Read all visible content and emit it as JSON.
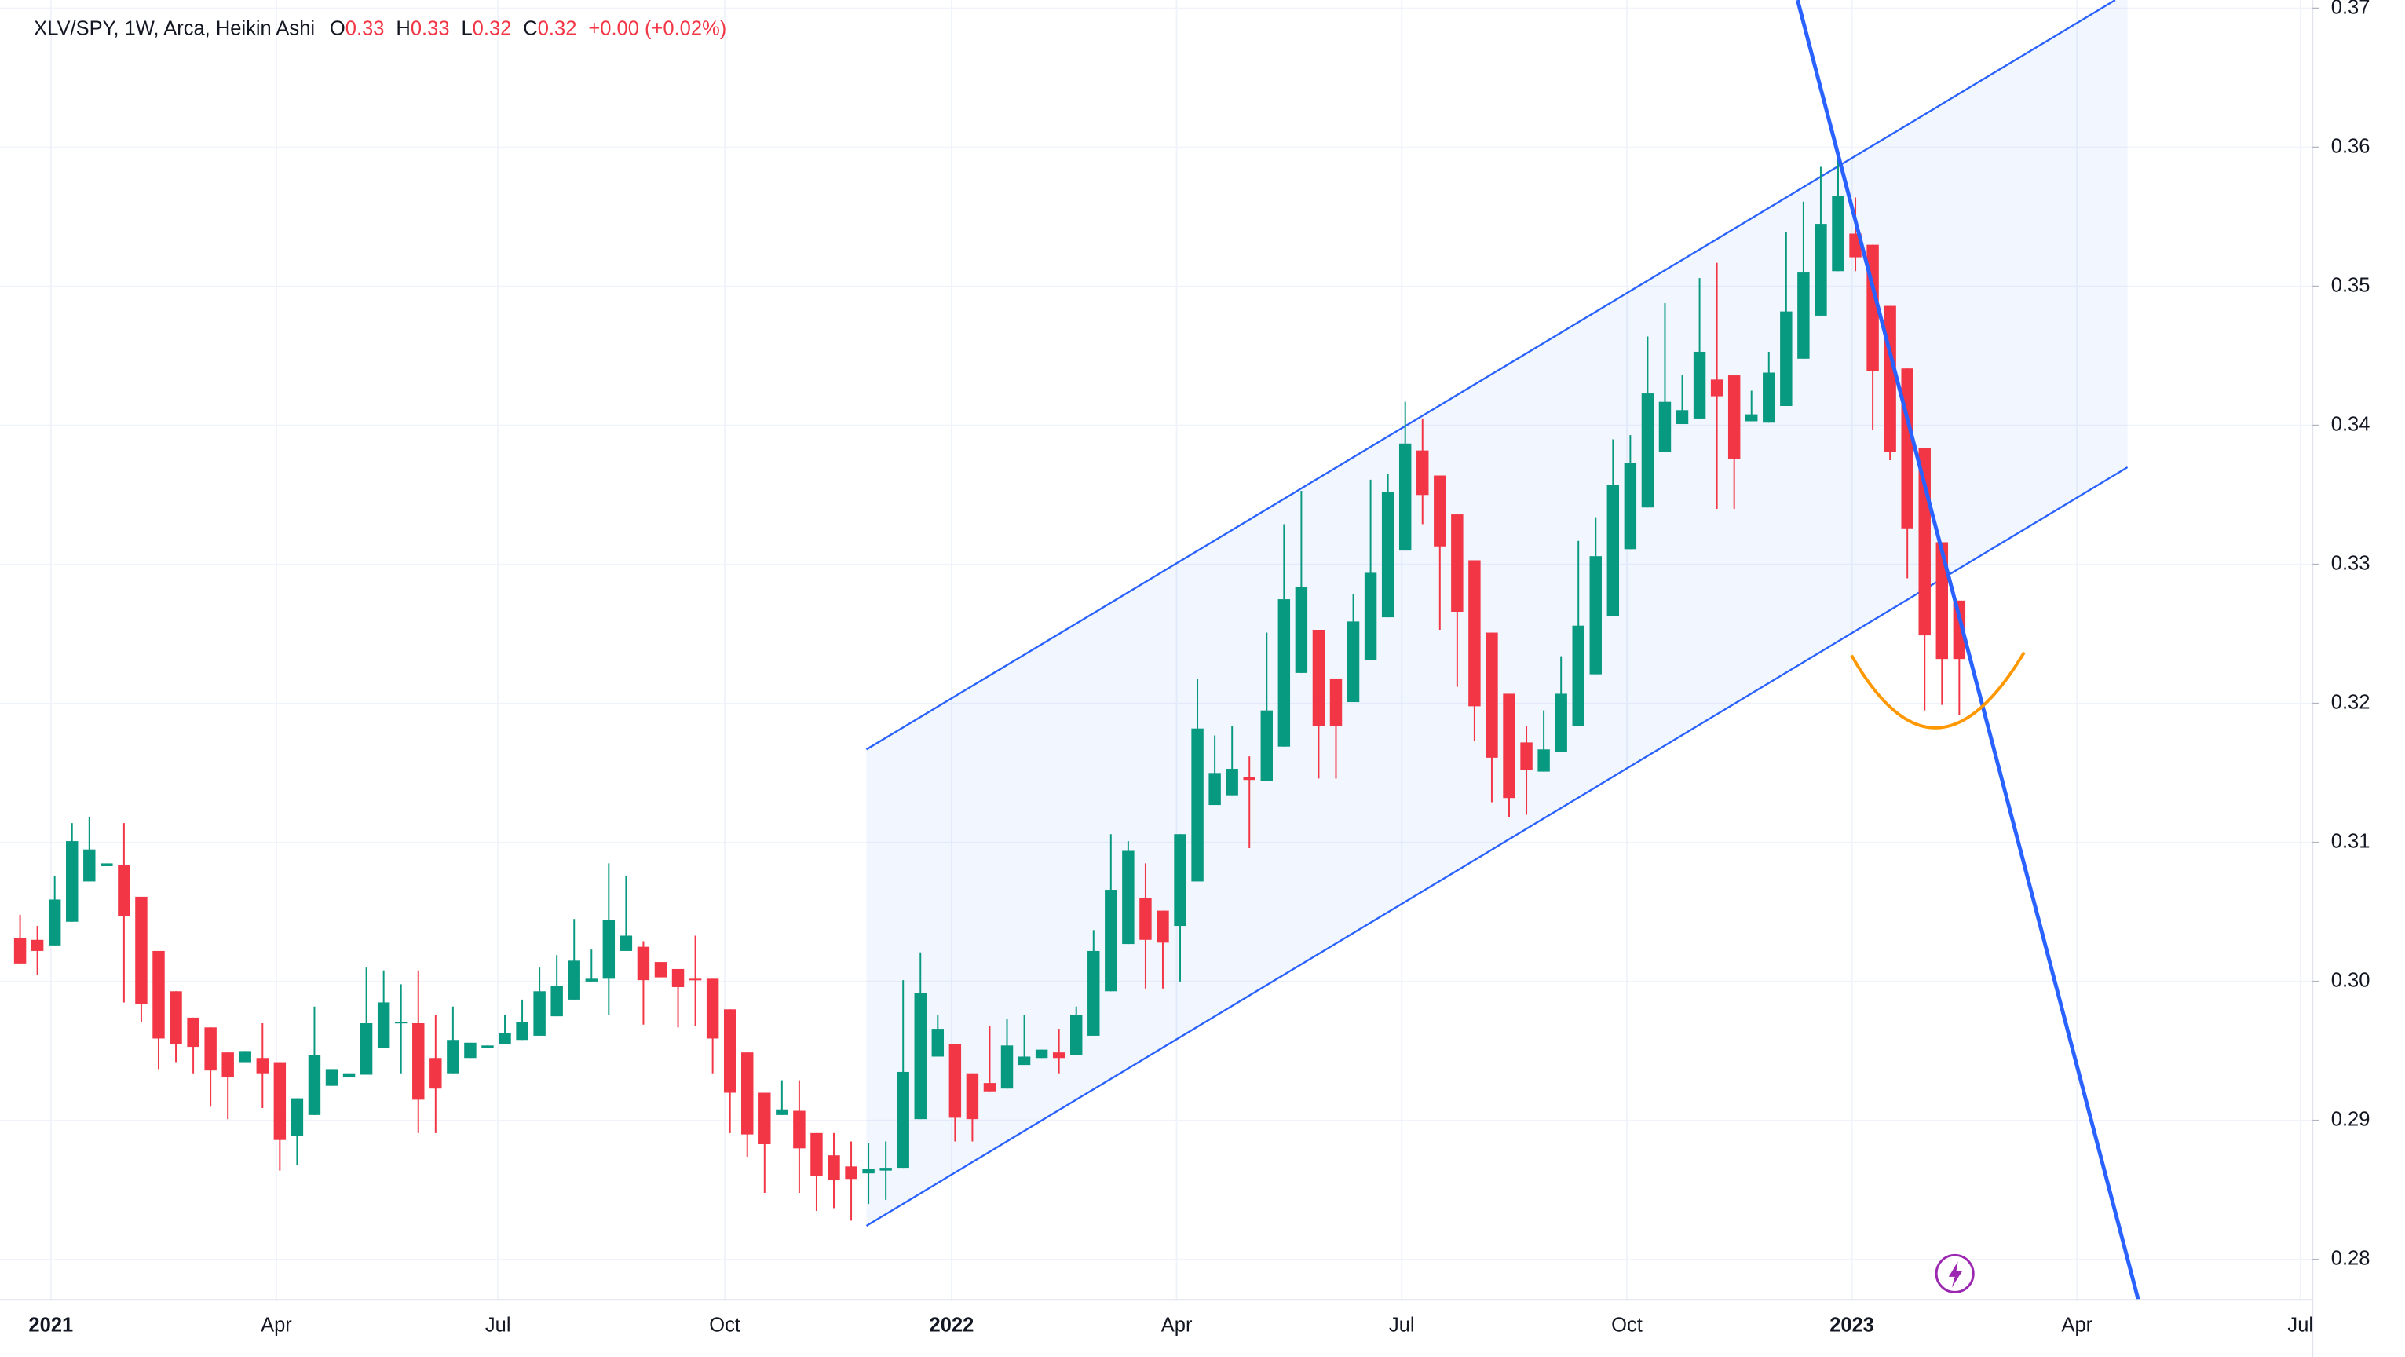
{
  "legend": {
    "symbol": "XLV/SPY, 1W, Arca, Heikin Ashi",
    "ohlc": [
      {
        "key": "O",
        "value": 0.33
      },
      {
        "key": "H",
        "value": 0.33
      },
      {
        "key": "L",
        "value": 0.32
      },
      {
        "key": "C",
        "value": 0.32
      }
    ],
    "change": "+0.00 (+0.02%)"
  },
  "chart_data": {
    "type": "candlestick",
    "up_color": "#089981",
    "down_color": "#f23645",
    "grid": true,
    "xlim": [
      -1.16,
      132.4
    ],
    "ylim": [
      0.2771,
      0.3706
    ],
    "xticks": [
      {
        "value": 1.78,
        "label": "2021"
      },
      {
        "value": 14.8,
        "label": "Apr"
      },
      {
        "value": 27.6,
        "label": "Jul"
      },
      {
        "value": 40.7,
        "label": "Oct"
      },
      {
        "value": 53.8,
        "label": "2022"
      },
      {
        "value": 66.8,
        "label": "Apr"
      },
      {
        "value": 79.8,
        "label": "Jul"
      },
      {
        "value": 92.8,
        "label": "Oct"
      },
      {
        "value": 105.8,
        "label": "2023"
      },
      {
        "value": 118.8,
        "label": "Apr"
      },
      {
        "value": 131.7,
        "label": "Jul"
      }
    ],
    "yticks": [
      0.28,
      0.29,
      {
        "value": 0.3,
        "label": "0.30"
      },
      0.31,
      0.32,
      0.33,
      0.34,
      0.35,
      0.36,
      0.37
    ],
    "open": [
      0.3031,
      0.303,
      0.3026,
      0.3043,
      0.3072,
      0.3083,
      0.3084,
      0.3061,
      0.3022,
      0.2993,
      0.2974,
      0.2967,
      0.2949,
      0.2942,
      0.2945,
      0.2942,
      0.2889,
      0.2904,
      0.2925,
      0.2931,
      0.2933,
      0.2952,
      0.297,
      0.297,
      0.2945,
      0.2934,
      0.2945,
      0.2952,
      0.2955,
      0.2958,
      0.2961,
      0.2975,
      0.2987,
      0.3,
      0.3002,
      0.3022,
      0.3025,
      0.3014,
      0.3009,
      0.3002,
      0.3002,
      0.298,
      0.2949,
      0.292,
      0.2904,
      0.2907,
      0.2891,
      0.2875,
      0.2867,
      0.2862,
      0.2864,
      0.2866,
      0.2901,
      0.2946,
      0.2955,
      0.2934,
      0.2927,
      0.2923,
      0.294,
      0.2945,
      0.2949,
      0.2947,
      0.2961,
      0.2993,
      0.3027,
      0.306,
      0.3051,
      0.304,
      0.3072,
      0.3127,
      0.3134,
      0.3147,
      0.3144,
      0.3169,
      0.3222,
      0.3253,
      0.3218,
      0.3201,
      0.3231,
      0.3262,
      0.331,
      0.3382,
      0.3364,
      0.3336,
      0.3303,
      0.3251,
      0.3207,
      0.3172,
      0.3151,
      0.3165,
      0.3184,
      0.3221,
      0.3263,
      0.3311,
      0.3341,
      0.3381,
      0.3401,
      0.3405,
      0.3433,
      0.3436,
      0.3403,
      0.3402,
      0.3414,
      0.3448,
      0.3479,
      0.3511,
      0.3538,
      0.353,
      0.3486,
      0.3441,
      0.3384,
      0.3316,
      0.3274
    ],
    "high": [
      0.3048,
      0.304,
      0.3076,
      0.3114,
      0.3118,
      0.3085,
      0.3114,
      0.3061,
      0.3022,
      0.2993,
      0.2974,
      0.2967,
      0.2949,
      0.295,
      0.297,
      0.2942,
      0.2916,
      0.2982,
      0.2937,
      0.2934,
      0.301,
      0.3008,
      0.2998,
      0.3008,
      0.2976,
      0.2982,
      0.2956,
      0.2954,
      0.2976,
      0.2987,
      0.301,
      0.3019,
      0.3045,
      0.3023,
      0.3085,
      0.3076,
      0.3029,
      0.3014,
      0.3009,
      0.3033,
      0.3002,
      0.298,
      0.2949,
      0.292,
      0.2929,
      0.2929,
      0.2891,
      0.2891,
      0.2885,
      0.2884,
      0.2885,
      0.3001,
      0.3021,
      0.2976,
      0.2955,
      0.2934,
      0.2968,
      0.2973,
      0.2976,
      0.2951,
      0.2966,
      0.2982,
      0.3037,
      0.3106,
      0.3101,
      0.3085,
      0.3051,
      0.3106,
      0.3218,
      0.3177,
      0.3184,
      0.3162,
      0.3251,
      0.3329,
      0.3353,
      0.3253,
      0.3218,
      0.3279,
      0.3361,
      0.3365,
      0.3417,
      0.3405,
      0.3364,
      0.3336,
      0.3303,
      0.3251,
      0.3207,
      0.3184,
      0.3195,
      0.3234,
      0.3317,
      0.3334,
      0.339,
      0.3393,
      0.3464,
      0.3488,
      0.3436,
      0.3506,
      0.3517,
      0.3436,
      0.3425,
      0.3453,
      0.3539,
      0.3561,
      0.3586,
      0.3595,
      0.3564,
      0.353,
      0.3486,
      0.3441,
      0.3384,
      0.3316,
      0.3274
    ],
    "low": [
      0.3013,
      0.3005,
      0.3026,
      0.3043,
      0.3072,
      0.3083,
      0.2985,
      0.2971,
      0.2937,
      0.2942,
      0.2934,
      0.291,
      0.2901,
      0.2942,
      0.2909,
      0.2864,
      0.2868,
      0.2904,
      0.2925,
      0.2931,
      0.2933,
      0.2952,
      0.2934,
      0.2891,
      0.2891,
      0.2934,
      0.2945,
      0.2952,
      0.2955,
      0.2958,
      0.2961,
      0.2975,
      0.2987,
      0.3,
      0.2976,
      0.3022,
      0.2969,
      0.3003,
      0.2967,
      0.2968,
      0.2934,
      0.2891,
      0.2874,
      0.2848,
      0.2904,
      0.2848,
      0.2835,
      0.2837,
      0.2828,
      0.284,
      0.2843,
      0.2866,
      0.2901,
      0.2946,
      0.2885,
      0.2885,
      0.2921,
      0.2923,
      0.294,
      0.2945,
      0.2934,
      0.2947,
      0.2961,
      0.2993,
      0.3027,
      0.2995,
      0.2995,
      0.3,
      0.3072,
      0.3127,
      0.3134,
      0.3096,
      0.3144,
      0.3169,
      0.3222,
      0.3146,
      0.3146,
      0.3201,
      0.3231,
      0.3262,
      0.331,
      0.3329,
      0.3253,
      0.3212,
      0.3173,
      0.3129,
      0.3118,
      0.312,
      0.3151,
      0.3165,
      0.3184,
      0.3221,
      0.3263,
      0.3311,
      0.3341,
      0.3381,
      0.3401,
      0.3405,
      0.334,
      0.334,
      0.3403,
      0.3402,
      0.3414,
      0.3448,
      0.3479,
      0.3511,
      0.3511,
      0.3397,
      0.3375,
      0.329,
      0.3195,
      0.3199,
      0.3192
    ],
    "close": [
      0.3013,
      0.3022,
      0.3059,
      0.3101,
      0.3095,
      0.3085,
      0.3047,
      0.2984,
      0.2959,
      0.2955,
      0.2953,
      0.2936,
      0.2931,
      0.295,
      0.2934,
      0.2886,
      0.2916,
      0.2947,
      0.2937,
      0.2934,
      0.297,
      0.2985,
      0.2971,
      0.2915,
      0.2923,
      0.2958,
      0.2956,
      0.2954,
      0.2963,
      0.2971,
      0.2993,
      0.2997,
      0.3015,
      0.3002,
      0.3044,
      0.3033,
      0.3001,
      0.3003,
      0.2996,
      0.3001,
      0.2959,
      0.292,
      0.289,
      0.2883,
      0.2908,
      0.288,
      0.286,
      0.2857,
      0.2858,
      0.2865,
      0.2866,
      0.2935,
      0.2992,
      0.2966,
      0.2902,
      0.2901,
      0.2921,
      0.2954,
      0.2946,
      0.2951,
      0.2945,
      0.2976,
      0.3022,
      0.3066,
      0.3094,
      0.303,
      0.3028,
      0.3106,
      0.3182,
      0.315,
      0.3153,
      0.3145,
      0.3195,
      0.3275,
      0.3284,
      0.3184,
      0.3184,
      0.3259,
      0.3294,
      0.3352,
      0.3387,
      0.335,
      0.3313,
      0.3266,
      0.3198,
      0.3161,
      0.3132,
      0.3152,
      0.3167,
      0.3207,
      0.3256,
      0.3306,
      0.3357,
      0.3373,
      0.3423,
      0.3417,
      0.3411,
      0.3453,
      0.3421,
      0.3376,
      0.3408,
      0.3438,
      0.3482,
      0.351,
      0.3545,
      0.3565,
      0.3521,
      0.3439,
      0.3381,
      0.3326,
      0.3249,
      0.3232,
      0.3232
    ]
  }
}
